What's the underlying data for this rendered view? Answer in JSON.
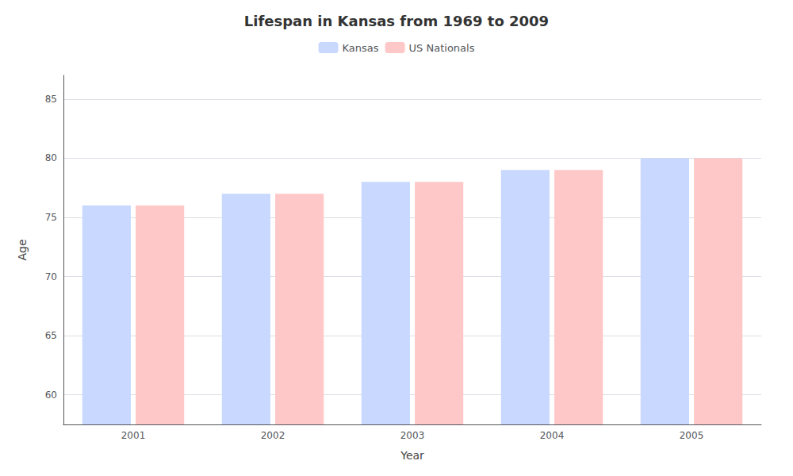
{
  "chart_data": {
    "type": "bar",
    "title": "Lifespan in Kansas from 1969 to 2009",
    "xlabel": "Year",
    "ylabel": "Age",
    "categories": [
      "2001",
      "2002",
      "2003",
      "2004",
      "2005"
    ],
    "series": [
      {
        "name": "Kansas",
        "color": "#c8d8ff",
        "values": [
          76.0,
          77.0,
          78.0,
          79.0,
          80.0
        ]
      },
      {
        "name": "US Nationals",
        "color": "#ffc8c8",
        "values": [
          76.0,
          77.0,
          78.0,
          79.0,
          80.0
        ]
      }
    ],
    "ylim": [
      57.5,
      87
    ],
    "yticks": [
      60,
      65,
      70,
      75,
      80,
      85
    ],
    "grid": true,
    "legend": "top"
  }
}
